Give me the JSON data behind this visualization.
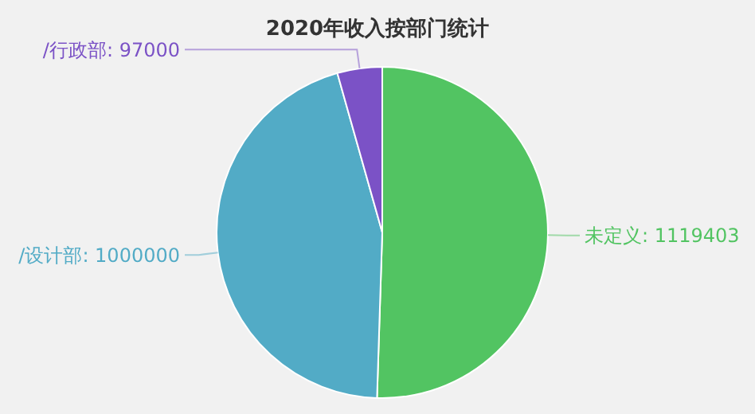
{
  "chart_data": {
    "type": "pie",
    "title": "2020年收入按部门统计",
    "categories": [
      "未定义",
      "/设计部",
      "/行政部"
    ],
    "values": [
      1119403,
      1000000,
      97000
    ],
    "value_labels": [
      ": 1119403",
      ": 1000000",
      ": 97000"
    ],
    "colors": [
      "#52c462",
      "#52abc6",
      "#7b52c6"
    ]
  }
}
